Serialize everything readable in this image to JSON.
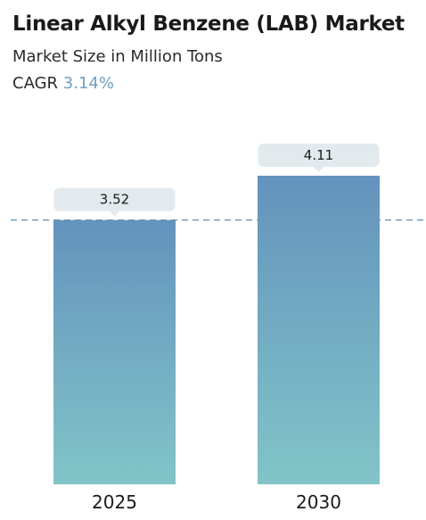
{
  "header": {
    "title": "Linear Alkyl Benzene (LAB) Market",
    "subtitle": "Market Size in Million Tons",
    "cagr_label": "CAGR",
    "cagr_value": "3.14%"
  },
  "colors": {
    "bar_top": "#6393bd",
    "bar_bottom": "#82c4c8",
    "label_box": "#e2eaee",
    "reference_line": "#6f97b5",
    "accent": "#6fa0bd"
  },
  "chart_data": {
    "type": "bar",
    "categories": [
      "2025",
      "2030"
    ],
    "values": [
      3.52,
      4.11
    ],
    "data_labels": [
      "3.52",
      "4.11"
    ],
    "title": "Linear Alkyl Benzene (LAB) Market",
    "subtitle": "Market Size in Million Tons",
    "xlabel": "",
    "ylabel": "",
    "grid": false,
    "reference_line": {
      "value": 3.52,
      "style": "dashed"
    }
  }
}
